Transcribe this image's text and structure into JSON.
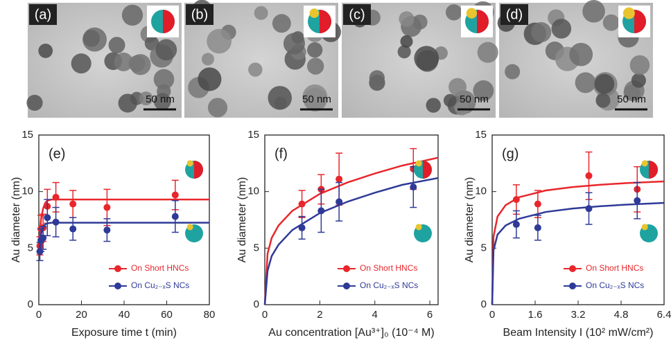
{
  "images": [
    {
      "label": "(a)",
      "scale": "50 nm"
    },
    {
      "label": "(b)",
      "scale": "50 nm"
    },
    {
      "label": "(c)",
      "scale": "50 nm"
    },
    {
      "label": "(d)",
      "scale": "50 nm"
    }
  ],
  "chart_data": [
    {
      "type": "scatter",
      "label": "(e)",
      "xlabel": "Exposure time t (min)",
      "ylabel": "Au diameter (nm)",
      "xlim": [
        0,
        80
      ],
      "xticks": [
        0,
        20,
        40,
        60,
        80
      ],
      "ylim": [
        0,
        15
      ],
      "yticks": [
        0,
        5,
        10,
        15
      ],
      "legend": "lower right",
      "series": [
        {
          "name": "On Short HNCs",
          "color": "#e8262b",
          "x": [
            0.5,
            1,
            2,
            4,
            8,
            16,
            32,
            64
          ],
          "values": [
            5.2,
            6.7,
            6.8,
            8.7,
            9.5,
            8.9,
            8.6,
            9.7
          ],
          "errors": [
            0.8,
            1.2,
            1.2,
            1.5,
            1.3,
            1.2,
            1.6,
            1.3
          ],
          "fit_x": [
            0,
            1,
            2,
            3,
            4,
            6,
            8,
            80
          ],
          "fit_values": [
            5,
            7.5,
            8.5,
            9,
            9.2,
            9.3,
            9.3,
            9.3
          ]
        },
        {
          "name": "On Cu₂₋ₓS NCs",
          "color": "#2e3a97",
          "x": [
            0.5,
            1,
            2,
            4,
            8,
            16,
            32,
            64
          ],
          "values": [
            4.7,
            5.7,
            5.9,
            7.7,
            7.3,
            6.7,
            6.6,
            7.8
          ],
          "errors": [
            0.8,
            1,
            1,
            1.6,
            1.3,
            1,
            1,
            1.4
          ],
          "fit_x": [
            0,
            1,
            2,
            3,
            4,
            6,
            8,
            80
          ],
          "fit_values": [
            4.5,
            6.2,
            6.9,
            7.1,
            7.2,
            7.25,
            7.25,
            7.25
          ]
        }
      ]
    },
    {
      "type": "scatter",
      "label": "(f)",
      "xlabel": "Au concentration [Au³⁺]₀ (10⁻⁴ M)",
      "ylabel": "Au diameter (nm)",
      "xlim": [
        0,
        6.3
      ],
      "xticks": [
        0,
        2,
        4,
        6
      ],
      "ylim": [
        0,
        15
      ],
      "yticks": [
        0,
        5,
        10,
        15
      ],
      "legend": "lower right",
      "series": [
        {
          "name": "On Short HNCs",
          "color": "#e8262b",
          "x": [
            1.35,
            2.05,
            2.7,
            5.4
          ],
          "values": [
            8.9,
            10.2,
            11.1,
            12.0
          ],
          "errors": [
            1.2,
            1.3,
            2.3,
            1.8
          ],
          "fit_x": [
            0,
            0.1,
            0.25,
            0.5,
            1,
            2,
            3,
            4,
            5,
            6.3
          ],
          "fit_values": [
            0,
            4.5,
            5.9,
            7,
            8.3,
            9.8,
            10.8,
            11.6,
            12.3,
            13.0
          ]
        },
        {
          "name": "On Cu₂₋ₓS NCs",
          "color": "#2e3a97",
          "x": [
            1.35,
            2.05,
            2.7,
            5.4
          ],
          "values": [
            6.8,
            8.3,
            9.1,
            10.4
          ],
          "errors": [
            1.0,
            1.9,
            1.7,
            1.8
          ],
          "fit_x": [
            0,
            0.1,
            0.25,
            0.5,
            1,
            2,
            3,
            4,
            5,
            6.3
          ],
          "fit_values": [
            0,
            3,
            4.3,
            5.3,
            6.6,
            8.1,
            9.1,
            9.9,
            10.6,
            11.2
          ]
        }
      ]
    },
    {
      "type": "scatter",
      "label": "(g)",
      "xlabel": "Beam Intensity I (10² mW/cm²)",
      "ylabel": "Au diameter (nm)",
      "xlim": [
        0,
        6.4
      ],
      "xticks": [
        0,
        1.6,
        3.2,
        4.8,
        6.4
      ],
      "ylim": [
        0,
        15
      ],
      "yticks": [
        0,
        5,
        10,
        15
      ],
      "legend": "lower right",
      "series": [
        {
          "name": "On Short HNCs",
          "color": "#e8262b",
          "x": [
            0.9,
            1.7,
            3.6,
            5.4
          ],
          "values": [
            9.3,
            8.9,
            11.4,
            10.2
          ],
          "errors": [
            1.3,
            1.2,
            2.1,
            2.0
          ],
          "fit_x": [
            0,
            0.05,
            0.2,
            0.5,
            1,
            2,
            3,
            4,
            5,
            6.4
          ],
          "fit_values": [
            0,
            6,
            7.8,
            8.8,
            9.5,
            10.1,
            10.4,
            10.6,
            10.75,
            10.9
          ]
        },
        {
          "name": "On Cu₂₋ₓS NCs",
          "color": "#2e3a97",
          "x": [
            0.9,
            1.7,
            3.6,
            5.4
          ],
          "values": [
            7.1,
            6.8,
            8.5,
            9.2
          ],
          "errors": [
            1.2,
            1.1,
            1.4,
            1.6
          ],
          "fit_x": [
            0,
            0.05,
            0.2,
            0.5,
            1,
            2,
            3,
            4,
            5,
            6.4
          ],
          "fit_values": [
            0,
            4.8,
            6.2,
            7,
            7.6,
            8.2,
            8.5,
            8.7,
            8.85,
            9.0
          ]
        }
      ]
    }
  ]
}
